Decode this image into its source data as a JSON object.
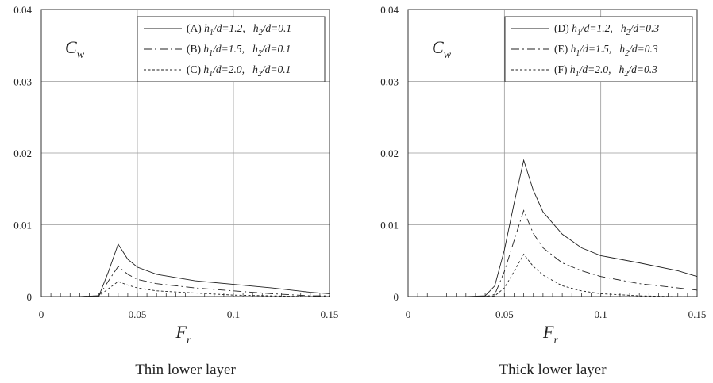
{
  "chart_data": [
    {
      "type": "line",
      "caption": "Thin lower layer",
      "ylabel": {
        "main": "C",
        "sub": "w"
      },
      "xlabel": {
        "main": "F",
        "sub": "r"
      },
      "xlim": [
        0,
        0.15
      ],
      "ylim": [
        0,
        0.04
      ],
      "xticks": [
        0,
        0.05,
        0.1,
        0.15
      ],
      "xtick_labels": [
        "0",
        "0.05",
        "0.1",
        "0.15"
      ],
      "yticks": [
        0,
        0.01,
        0.02,
        0.03,
        0.04
      ],
      "ytick_labels": [
        "0",
        "0.01",
        "0.02",
        "0.03",
        "0.04"
      ],
      "grid": true,
      "legend_position": "top-right",
      "series": [
        {
          "name": "(A) h1/d=1.2, h2/d=0.1",
          "label": {
            "id": "(A)",
            "h1": "1.2",
            "h2": "0.1"
          },
          "dash": "solid",
          "x": [
            0.02,
            0.03,
            0.035,
            0.04,
            0.045,
            0.05,
            0.06,
            0.08,
            0.1,
            0.12,
            0.14,
            0.15
          ],
          "y": [
            0,
            0.0001,
            0.0035,
            0.0073,
            0.0052,
            0.0041,
            0.0031,
            0.0022,
            0.0017,
            0.0012,
            0.0006,
            0.0004
          ]
        },
        {
          "name": "(B) h1/d=1.5, h2/d=0.1",
          "label": {
            "id": "(B)",
            "h1": "1.5",
            "h2": "0.1"
          },
          "dash": "dash-dot",
          "x": [
            0.02,
            0.03,
            0.035,
            0.04,
            0.045,
            0.05,
            0.06,
            0.08,
            0.1,
            0.12,
            0.14,
            0.15
          ],
          "y": [
            0,
            0.0001,
            0.0022,
            0.0042,
            0.0031,
            0.0024,
            0.0018,
            0.0012,
            0.0008,
            0.0004,
            0.0001,
            0.0001
          ]
        },
        {
          "name": "(C) h1/d=2.0, h2/d=0.1",
          "label": {
            "id": "(C)",
            "h1": "2.0",
            "h2": "0.1"
          },
          "dash": "dotted",
          "x": [
            0.02,
            0.03,
            0.035,
            0.04,
            0.045,
            0.05,
            0.06,
            0.08,
            0.1,
            0.12,
            0.14,
            0.15
          ],
          "y": [
            0,
            0.0001,
            0.0011,
            0.0021,
            0.0016,
            0.0012,
            0.0008,
            0.0005,
            0.0002,
            0.0001,
            0,
            0
          ]
        }
      ]
    },
    {
      "type": "line",
      "caption": "Thick lower layer",
      "ylabel": {
        "main": "C",
        "sub": "w"
      },
      "xlabel": {
        "main": "F",
        "sub": "r"
      },
      "xlim": [
        0,
        0.15
      ],
      "ylim": [
        0,
        0.04
      ],
      "xticks": [
        0,
        0.05,
        0.1,
        0.15
      ],
      "xtick_labels": [
        "0",
        "0.05",
        "0.1",
        "0.15"
      ],
      "yticks": [
        0,
        0.01,
        0.02,
        0.03,
        0.04
      ],
      "ytick_labels": [
        "0",
        "0.01",
        "0.02",
        "0.03",
        "0.04"
      ],
      "grid": true,
      "legend_position": "top-right",
      "series": [
        {
          "name": "(D) h1/d=1.2, h2/d=0.3",
          "label": {
            "id": "(D)",
            "h1": "1.2",
            "h2": "0.3"
          },
          "dash": "solid",
          "x": [
            0.03,
            0.04,
            0.045,
            0.05,
            0.055,
            0.06,
            0.065,
            0.07,
            0.08,
            0.09,
            0.1,
            0.12,
            0.14,
            0.15
          ],
          "y": [
            0,
            0.0001,
            0.0015,
            0.0065,
            0.013,
            0.019,
            0.0148,
            0.0118,
            0.0087,
            0.0068,
            0.0057,
            0.0047,
            0.0036,
            0.0028
          ]
        },
        {
          "name": "(E) h1/d=1.5, h2/d=0.3",
          "label": {
            "id": "(E)",
            "h1": "1.5",
            "h2": "0.3"
          },
          "dash": "dash-dot",
          "x": [
            0.03,
            0.04,
            0.045,
            0.05,
            0.055,
            0.06,
            0.065,
            0.07,
            0.08,
            0.09,
            0.1,
            0.12,
            0.14,
            0.15
          ],
          "y": [
            0,
            0,
            0.0003,
            0.0035,
            0.0078,
            0.012,
            0.0088,
            0.0068,
            0.0047,
            0.0036,
            0.0028,
            0.0018,
            0.0012,
            0.0009
          ]
        },
        {
          "name": "(F) h1/d=2.0, h2/d=0.3",
          "label": {
            "id": "(F)",
            "h1": "2.0",
            "h2": "0.3"
          },
          "dash": "dotted",
          "x": [
            0.03,
            0.04,
            0.045,
            0.05,
            0.055,
            0.06,
            0.065,
            0.07,
            0.08,
            0.09,
            0.1,
            0.12,
            0.14,
            0.15
          ],
          "y": [
            0,
            0,
            0.0001,
            0.0012,
            0.0035,
            0.0059,
            0.0042,
            0.003,
            0.0015,
            0.0008,
            0.0004,
            0.0001,
            0,
            0
          ]
        }
      ]
    }
  ]
}
